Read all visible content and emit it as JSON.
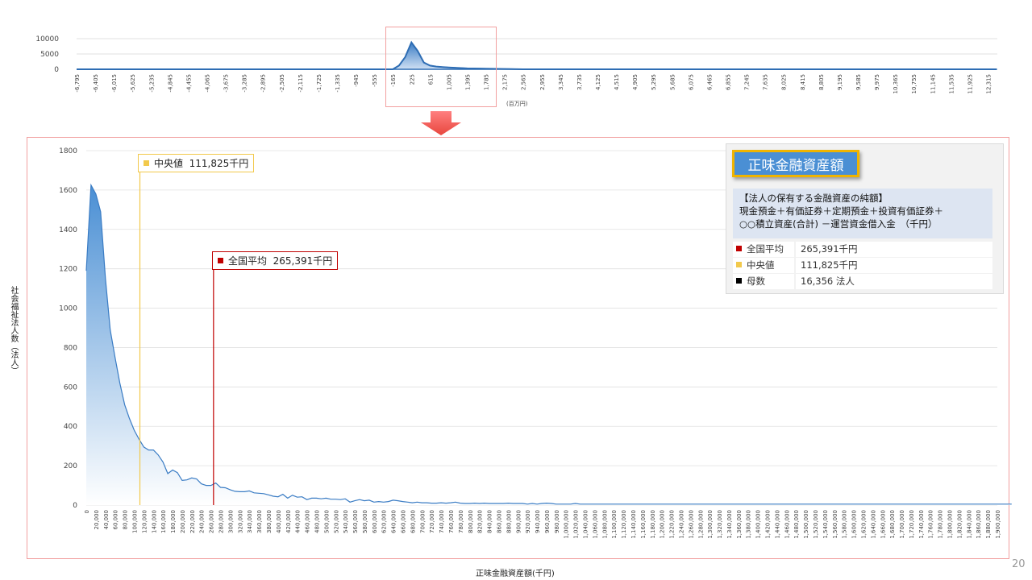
{
  "chart_data": [
    {
      "type": "area",
      "unit_label": "(百万円)",
      "ylim": [
        0,
        10000
      ],
      "y_ticks": [
        "10000",
        "5000",
        "0"
      ],
      "x_tick_labels": [
        "-6,795",
        "-6,405",
        "-6,015",
        "-5,625",
        "-5,235",
        "-4,845",
        "-4,455",
        "-4,065",
        "-3,675",
        "-3,285",
        "-2,895",
        "-2,505",
        "-2,115",
        "-1,725",
        "-1,335",
        "-945",
        "-555",
        "-165",
        "225",
        "615",
        "1,005",
        "1,395",
        "1,785",
        "2,175",
        "2,565",
        "2,955",
        "3,345",
        "3,735",
        "4,125",
        "4,515",
        "4,905",
        "5,295",
        "5,685",
        "6,075",
        "6,465",
        "6,855",
        "7,245",
        "7,635",
        "8,025",
        "8,415",
        "8,805",
        "9,195",
        "9,585",
        "9,975",
        "10,365",
        "10,755",
        "11,145",
        "11,535",
        "11,925",
        "12,315"
      ],
      "x": [
        -6795,
        -165,
        -35,
        95,
        225,
        355,
        485,
        615,
        745,
        875,
        1005,
        1395,
        1785,
        2175,
        2565,
        12500
      ],
      "values": [
        0,
        0,
        1200,
        4000,
        8800,
        6000,
        2200,
        1200,
        900,
        750,
        600,
        300,
        200,
        100,
        0,
        0
      ]
    },
    {
      "type": "area",
      "title": "正味金融資産額",
      "xlabel": "正味金融資産額(千円)",
      "ylabel": "社会福祉法人数（法人）",
      "ylim": [
        0,
        1800
      ],
      "y_ticks": [
        "1800",
        "1600",
        "1400",
        "1200",
        "1000",
        "800",
        "600",
        "400",
        "200",
        "0"
      ],
      "x_start": 0,
      "x_step": 10000,
      "x_label_step": 20000,
      "x_max": 1900000,
      "values": [
        1190,
        1625,
        1580,
        1490,
        1150,
        890,
        750,
        620,
        510,
        440,
        380,
        335,
        295,
        280,
        280,
        255,
        218,
        160,
        178,
        165,
        125,
        128,
        138,
        133,
        108,
        100,
        100,
        112,
        90,
        88,
        78,
        70,
        68,
        68,
        72,
        62,
        60,
        58,
        52,
        45,
        42,
        55,
        35,
        50,
        40,
        42,
        28,
        35,
        35,
        32,
        35,
        30,
        30,
        28,
        32,
        15,
        22,
        28,
        22,
        25,
        15,
        18,
        15,
        18,
        25,
        22,
        18,
        15,
        12,
        15,
        12,
        12,
        10,
        10,
        12,
        10,
        12,
        15,
        10,
        8,
        8,
        10,
        8,
        10,
        8,
        8,
        8,
        8,
        10,
        8,
        8,
        8,
        5,
        8,
        5,
        8,
        10,
        8,
        5,
        5,
        5,
        5,
        8,
        5,
        5,
        5,
        5,
        5,
        5,
        5,
        5,
        5,
        5,
        5,
        5,
        5,
        5,
        5,
        5,
        5,
        5,
        5,
        5,
        5,
        5,
        5,
        5,
        5,
        5,
        5,
        5,
        5,
        5,
        5,
        5,
        5,
        5,
        5,
        5,
        5,
        5,
        5,
        5,
        5,
        5,
        5,
        5,
        5,
        5,
        5,
        5,
        5,
        5,
        5,
        5,
        5,
        5,
        5,
        5,
        5,
        5,
        5,
        5,
        5,
        5,
        5,
        5,
        5,
        5,
        5,
        5,
        5,
        5,
        5,
        5,
        5,
        5,
        5,
        5,
        5,
        5,
        5,
        5,
        5,
        5,
        5,
        5,
        5,
        5,
        5,
        5,
        5,
        5,
        5
      ],
      "markers": {
        "median": {
          "label": "中央値",
          "value_text": "111,825千円",
          "x": 111825
        },
        "mean": {
          "label": "全国平均",
          "value_text": "265,391千円",
          "x": 265391
        }
      }
    }
  ],
  "info_panel": {
    "title": "正味金融資産額",
    "desc_line1": "【法人の保有する金融資産の純額】",
    "desc_line2": "現金預金＋有価証券＋定期預金＋投資有価証券＋",
    "desc_line3": "○○積立資産(合計) －運営資金借入金　（千円）",
    "rows": [
      {
        "key": "全国平均",
        "value": "265,391千円"
      },
      {
        "key": "中央値",
        "value": "111,825千円"
      },
      {
        "key": "母数",
        "value": "16,356  法人"
      }
    ]
  },
  "colors": {
    "area": "#4a8fd4",
    "area_light": "#dbe8f6",
    "mean": "#c00000",
    "median": "#f2c94c",
    "frame": "#f2a0a0",
    "count_square": "#000000"
  },
  "page_number": "20"
}
